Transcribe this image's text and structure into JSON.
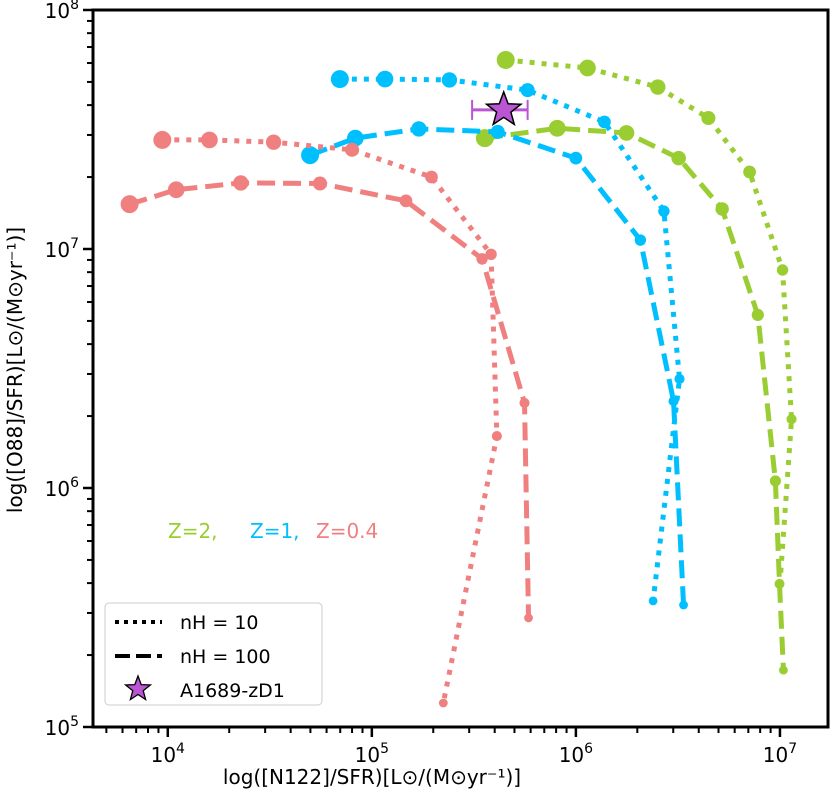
{
  "chart_data": {
    "type": "line",
    "xscale": "log",
    "yscale": "log",
    "xlabel": "log([N122]/SFR)[L⊙/(M⊙yr⁻¹)]",
    "ylabel": "log([O88]/SFR)[L⊙/(M⊙yr⁻¹)]",
    "xlim": [
      4300.0,
      17200000.0
    ],
    "ylim": [
      100000.0,
      100000000.0
    ],
    "x_ticks": [
      {
        "value": 10000.0,
        "label_base": "10",
        "label_exp": "4"
      },
      {
        "value": 100000.0,
        "label_base": "10",
        "label_exp": "5"
      },
      {
        "value": 1000000.0,
        "label_base": "10",
        "label_exp": "6"
      },
      {
        "value": 10000000.0,
        "label_base": "10",
        "label_exp": "7"
      }
    ],
    "y_ticks": [
      {
        "value": 100000.0,
        "label_base": "10",
        "label_exp": "5"
      },
      {
        "value": 1000000.0,
        "label_base": "10",
        "label_exp": "6"
      },
      {
        "value": 10000000.0,
        "label_base": "10",
        "label_exp": "7"
      },
      {
        "value": 100000000.0,
        "label_base": "10",
        "label_exp": "8"
      }
    ],
    "grid": false,
    "series": [
      {
        "name": "Z=2, nH=10",
        "color": "#9acd32",
        "style": "dotted",
        "x": [
          453000.0,
          1140000.0,
          2520000.0,
          4460000.0,
          7100000.0,
          10300000.0,
          11400000.0,
          10000000.0
        ],
        "y": [
          61800000.0,
          57200000.0,
          47600000.0,
          35300000.0,
          21000000.0,
          8170000.0,
          1940000.0,
          397000.0
        ]
      },
      {
        "name": "Z=2, nH=100",
        "color": "#9acd32",
        "style": "dashed",
        "x": [
          358000.0,
          810000.0,
          1770000.0,
          3190000.0,
          5210000.0,
          7790000.0,
          9500000.0,
          9950000.0,
          10400000.0
        ],
        "y": [
          29100000.0,
          32000000.0,
          30600000.0,
          24000000.0,
          14700000.0,
          5300000.0,
          1070000.0,
          397000.0,
          173000.0
        ]
      },
      {
        "name": "Z=1, nH=10",
        "color": "#00bfff",
        "style": "dotted",
        "x": [
          69700.0,
          116000.0,
          240000.0,
          580000.0,
          1380000.0,
          2700000.0,
          3220000.0,
          2390000.0
        ],
        "y": [
          51400000.0,
          51400000.0,
          51000000.0,
          46200000.0,
          34000000.0,
          14400000.0,
          2860000.0,
          337000.0
        ]
      },
      {
        "name": "Z=1, nH=100",
        "color": "#00bfff",
        "style": "dashed",
        "x": [
          49800.0,
          83000.0,
          170000.0,
          414000.0,
          1000000.0,
          2070000.0,
          3010000.0,
          3370000.0
        ],
        "y": [
          24700000.0,
          29100000.0,
          31800000.0,
          30900000.0,
          24000000.0,
          10900000.0,
          2310000.0,
          324000.0
        ]
      },
      {
        "name": "Z=0.4, nH=10",
        "color": "#f08080",
        "style": "dotted",
        "x": [
          9400.0,
          16000.0,
          33000.0,
          80000.0,
          196000.0,
          384000.0,
          410000.0,
          224000.0
        ],
        "y": [
          28600000.0,
          28600000.0,
          28000000.0,
          26000000.0,
          20000000.0,
          9500000.0,
          1650000.0,
          126000.0
        ]
      },
      {
        "name": "Z=0.4, nH=100",
        "color": "#f08080",
        "style": "dashed",
        "x": [
          6500.0,
          11000.0,
          22800.0,
          55700.0,
          147000.0,
          347000.0,
          560000.0,
          586000.0
        ],
        "y": [
          15400000.0,
          17700000.0,
          18900000.0,
          18800000.0,
          15900000.0,
          9100000.0,
          2270000.0,
          286000.0
        ]
      }
    ],
    "observation": {
      "name": "A1689-zD1",
      "x": 443000.0,
      "y": 38200000.0,
      "xerr_low": 310000.0,
      "xerr_high": 580000.0,
      "color": "#ba55d3"
    },
    "annotations": [
      {
        "text": "Z=2,",
        "color": "#9acd32"
      },
      {
        "text": "Z=1,",
        "color": "#00bfff"
      },
      {
        "text": "Z=0.4",
        "color": "#f08080"
      }
    ],
    "legend": {
      "placement": "lower-left",
      "entries": [
        {
          "label": "nH = 10",
          "style": "dotted"
        },
        {
          "label": "nH = 100",
          "style": "dashed"
        },
        {
          "label": "A1689-zD1",
          "style": "star"
        }
      ]
    }
  }
}
